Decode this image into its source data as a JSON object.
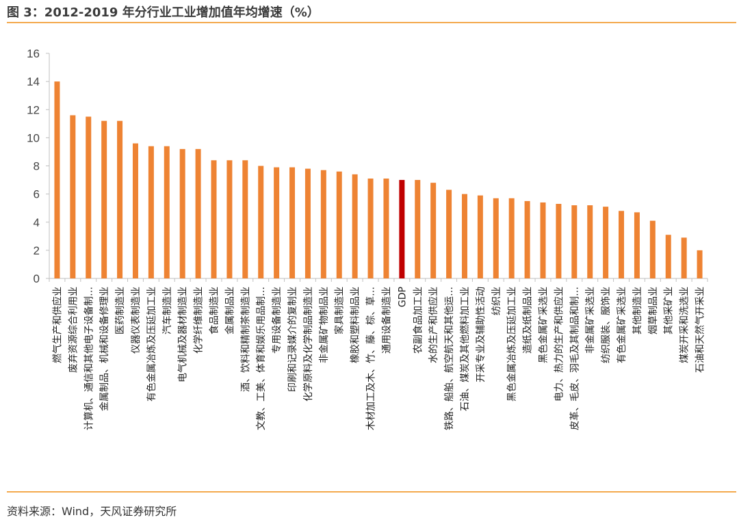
{
  "header": {
    "title": "图 3：2012-2019 年分行业工业增加值年均增速（%）"
  },
  "footer": {
    "source": "资料来源：Wind，天风证券研究所"
  },
  "colors": {
    "bar": "#ee8333",
    "highlight": "#c00000",
    "axis": "#bfbfbf",
    "rule": "#f4a94d"
  },
  "chart_data": {
    "type": "bar",
    "title": "2012-2019 年分行业工业增加值年均增速（%）",
    "xlabel": "",
    "ylabel": "",
    "ylim": [
      0,
      16
    ],
    "yticks": [
      0,
      2,
      4,
      6,
      8,
      10,
      12,
      14,
      16
    ],
    "grid": false,
    "legend": "none",
    "highlight_category": "GDP",
    "categories": [
      "燃气生产和供应业",
      "废弃资源综合利用业",
      "计算机、通信和其他电子设备制…",
      "金属制品、机械和设备修理业",
      "医药制造业",
      "仪器仪表制造业",
      "有色金属冶炼及压延加工业",
      "汽车制造业",
      "电气机械及器材制造业",
      "化学纤维制造业",
      "食品制造业",
      "金属制品业",
      "酒、饮料和精制茶制造业",
      "文教、工美、体育和娱乐用品制…",
      "专用设备制造业",
      "印刷和记录媒介的复制业",
      "化学原料及化学制品制造业",
      "非金属矿物制品业",
      "家具制造业",
      "橡胶和塑料制品业",
      "木材加工及木、竹、藤、棕、草…",
      "通用设备制造业",
      "GDP",
      "农副食品加工业",
      "水的生产和供应业",
      "铁路、船舶、航空航天和其他运…",
      "石油、煤炭及其他燃料加工业",
      "开采专业及辅助性活动",
      "纺织业",
      "黑色金属冶炼及压延加工业",
      "造纸及纸制品业",
      "黑色金属矿采选业",
      "电力、热力的生产和供应业",
      "皮革、毛皮、羽毛及其制品和制…",
      "非金属矿采选业",
      "纺织服装、服饰业",
      "有色金属矿采选业",
      "其他制造业",
      "烟草制品业",
      "其他采矿业",
      "煤炭开采和洗选业",
      "石油和天然气开采业"
    ],
    "values": [
      14.0,
      11.6,
      11.5,
      11.2,
      11.2,
      9.6,
      9.4,
      9.4,
      9.2,
      9.2,
      8.4,
      8.4,
      8.4,
      8.0,
      7.9,
      7.9,
      7.8,
      7.7,
      7.6,
      7.4,
      7.1,
      7.1,
      7.0,
      7.0,
      6.8,
      6.3,
      6.0,
      5.9,
      5.7,
      5.7,
      5.5,
      5.4,
      5.3,
      5.2,
      5.2,
      5.1,
      4.8,
      4.7,
      4.1,
      3.1,
      2.9,
      2.0
    ]
  }
}
